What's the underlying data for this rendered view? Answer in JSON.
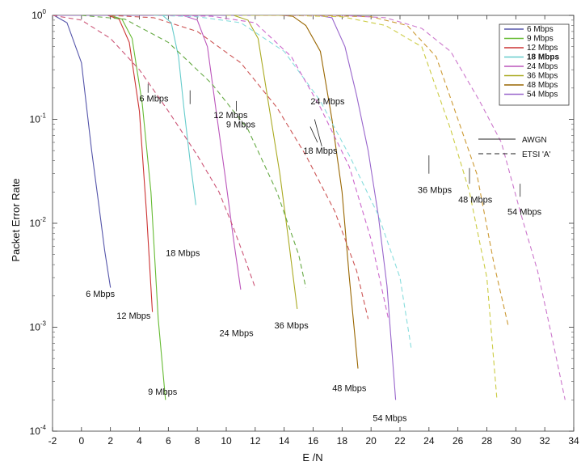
{
  "chart_data": {
    "type": "line",
    "xlabel": "E /N",
    "ylabel": "Packet Error Rate",
    "xlim": [
      -2,
      34
    ],
    "ylim": [
      0.0001,
      1
    ],
    "yscale": "log",
    "x_ticks": [
      -2,
      0,
      2,
      4,
      6,
      8,
      10,
      12,
      14,
      16,
      18,
      20,
      22,
      24,
      26,
      28,
      30,
      32,
      34
    ],
    "y_ticks": [
      {
        "value": 1,
        "base": "10",
        "exp": "0"
      },
      {
        "value": 0.1,
        "base": "10",
        "exp": "-1"
      },
      {
        "value": 0.01,
        "base": "10",
        "exp": "-2"
      },
      {
        "value": 0.001,
        "base": "10",
        "exp": "-3"
      },
      {
        "value": 0.0001,
        "base": "10",
        "exp": "-4"
      }
    ],
    "grid": false,
    "legend_position": "top-right",
    "legend": [
      {
        "name": "6 Mbps",
        "color": "#5555aa"
      },
      {
        "name": "9 Mbps",
        "color": "#66bb33"
      },
      {
        "name": "12 Mbps",
        "color": "#cc3333"
      },
      {
        "name": "18 Mbps",
        "color": "#66cccc",
        "bold": true
      },
      {
        "name": "24 Mbps",
        "color": "#bb55bb"
      },
      {
        "name": "36 Mbps",
        "color": "#aaaa22"
      },
      {
        "name": "48 Mbps",
        "color": "#996600"
      },
      {
        "name": "54 Mbps",
        "color": "#9966cc"
      }
    ],
    "line_styles": [
      {
        "name": "AWGN",
        "dash": "solid"
      },
      {
        "name": "ETSI 'A'",
        "dash": "dashed"
      }
    ],
    "series": [
      {
        "rate": "6 Mbps",
        "channel": "AWGN",
        "color": "#5555aa",
        "dashed": false,
        "x": [
          -1.9,
          -1.0,
          0.0,
          0.7,
          1.2,
          1.6,
          2.0
        ],
        "y": [
          1.0,
          0.85,
          0.35,
          0.05,
          0.015,
          0.0055,
          0.0024
        ]
      },
      {
        "rate": "9 Mbps",
        "channel": "AWGN",
        "color": "#66bb33",
        "dashed": false,
        "x": [
          -2.0,
          2.0,
          2.8,
          3.5,
          4.2,
          4.8,
          5.3,
          5.8
        ],
        "y": [
          1.0,
          1.0,
          0.92,
          0.6,
          0.14,
          0.02,
          0.0012,
          0.0002
        ]
      },
      {
        "rate": "12 Mbps",
        "channel": "AWGN",
        "color": "#cc3333",
        "dashed": false,
        "x": [
          -2.0,
          1.8,
          2.6,
          3.3,
          4.0,
          4.5,
          4.9
        ],
        "y": [
          1.0,
          1.0,
          0.92,
          0.55,
          0.12,
          0.012,
          0.0014
        ]
      },
      {
        "rate": "18 Mbps",
        "channel": "AWGN",
        "color": "#66cccc",
        "dashed": false,
        "x": [
          -2.0,
          5.6,
          6.2,
          6.7,
          7.1,
          7.5,
          7.9
        ],
        "y": [
          1.0,
          1.0,
          0.85,
          0.4,
          0.12,
          0.04,
          0.015
        ]
      },
      {
        "rate": "24 Mbps",
        "channel": "AWGN",
        "color": "#bb55bb",
        "dashed": false,
        "x": [
          -2.0,
          7.0,
          8.0,
          8.7,
          9.3,
          9.9,
          10.5,
          11.0
        ],
        "y": [
          1.0,
          1.0,
          0.9,
          0.5,
          0.12,
          0.03,
          0.007,
          0.0023
        ]
      },
      {
        "rate": "36 Mbps",
        "channel": "AWGN",
        "color": "#aaaa22",
        "dashed": false,
        "x": [
          -2.0,
          10.5,
          11.5,
          12.2,
          13.0,
          13.7,
          14.3,
          14.9
        ],
        "y": [
          1.0,
          1.0,
          0.9,
          0.6,
          0.12,
          0.03,
          0.007,
          0.0015
        ]
      },
      {
        "rate": "48 Mbps",
        "channel": "AWGN",
        "color": "#996600",
        "dashed": false,
        "x": [
          -2.0,
          13.8,
          14.6,
          15.5,
          16.5,
          17.3,
          18.0,
          18.5,
          19.1
        ],
        "y": [
          1.0,
          1.0,
          0.98,
          0.8,
          0.45,
          0.1,
          0.02,
          0.003,
          0.0004
        ]
      },
      {
        "rate": "54 Mbps",
        "channel": "AWGN",
        "color": "#9966cc",
        "dashed": false,
        "x": [
          -2.0,
          16.3,
          17.3,
          18.2,
          19.0,
          19.8,
          20.5,
          21.1,
          21.7
        ],
        "y": [
          1.0,
          1.0,
          0.95,
          0.5,
          0.17,
          0.05,
          0.012,
          0.0025,
          0.0002
        ]
      },
      {
        "rate": "6 Mbps",
        "channel": "ETSI 'A'",
        "color": "#cc5577",
        "dashed": true,
        "x": [
          -2.0,
          0.0,
          2.0,
          4.0,
          6.0,
          8.0,
          9.5,
          10.5,
          11.3,
          12.0
        ],
        "y": [
          1.0,
          0.9,
          0.6,
          0.3,
          0.12,
          0.045,
          0.02,
          0.009,
          0.0045,
          0.0024
        ]
      },
      {
        "rate": "9 Mbps",
        "channel": "ETSI 'A'",
        "color": "#66aa44",
        "dashed": true,
        "x": [
          0.0,
          3.0,
          6.0,
          9.0,
          11.5,
          13.5,
          15.0,
          15.5
        ],
        "y": [
          1.0,
          0.92,
          0.55,
          0.22,
          0.08,
          0.02,
          0.005,
          0.0024
        ]
      },
      {
        "rate": "12 Mbps",
        "channel": "ETSI 'A'",
        "color": "#cc5555",
        "dashed": true,
        "x": [
          2.0,
          5.0,
          8.0,
          11.0,
          13.5,
          15.5,
          17.5,
          19.0,
          19.8
        ],
        "y": [
          1.0,
          0.95,
          0.7,
          0.35,
          0.13,
          0.045,
          0.013,
          0.0035,
          0.0012
        ]
      },
      {
        "rate": "18 Mbps",
        "channel": "ETSI 'A'",
        "color": "#88dddd",
        "dashed": true,
        "x": [
          5.0,
          8.0,
          11.0,
          14.0,
          16.5,
          18.5,
          20.5,
          22.0,
          22.8
        ],
        "y": [
          1.0,
          0.97,
          0.85,
          0.45,
          0.15,
          0.045,
          0.012,
          0.003,
          0.0006
        ]
      },
      {
        "rate": "24 Mbps",
        "channel": "ETSI 'A'",
        "color": "#cc66cc",
        "dashed": true,
        "x": [
          6.0,
          9.0,
          12.0,
          14.5,
          16.5,
          18.5,
          20.0,
          21.2
        ],
        "y": [
          1.0,
          0.98,
          0.85,
          0.4,
          0.13,
          0.035,
          0.007,
          0.0012
        ]
      },
      {
        "rate": "36 Mbps",
        "channel": "ETSI 'A'",
        "color": "#cccc44",
        "dashed": true,
        "x": [
          10.0,
          14.0,
          18.0,
          21.0,
          23.5,
          25.5,
          26.8,
          28.0,
          28.7
        ],
        "y": [
          1.0,
          1.0,
          0.97,
          0.8,
          0.5,
          0.08,
          0.02,
          0.003,
          0.0002
        ]
      },
      {
        "rate": "48 Mbps",
        "channel": "ETSI 'A'",
        "color": "#cc9933",
        "dashed": true,
        "x": [
          12.0,
          16.0,
          20.0,
          22.5,
          24.5,
          26.0,
          27.3,
          28.5,
          29.5
        ],
        "y": [
          1.0,
          1.0,
          0.97,
          0.8,
          0.4,
          0.1,
          0.03,
          0.004,
          0.001
        ]
      },
      {
        "rate": "54 Mbps",
        "channel": "ETSI 'A'",
        "color": "#cc77cc",
        "dashed": true,
        "x": [
          14.0,
          18.0,
          21.0,
          23.5,
          25.5,
          27.5,
          29.0,
          30.3,
          31.5,
          32.5,
          33.4
        ],
        "y": [
          1.0,
          1.0,
          0.95,
          0.75,
          0.45,
          0.15,
          0.06,
          0.013,
          0.0035,
          0.0008,
          0.0002
        ]
      }
    ],
    "annotations": [
      {
        "text": "6 Mbps",
        "x": 5.0,
        "y": 0.16,
        "pointer": [
          4.6,
          0.22,
          4.6,
          0.18
        ]
      },
      {
        "text": "12 Mbps",
        "x": 10.3,
        "y": 0.11,
        "pointer": [
          7.5,
          0.19,
          7.5,
          0.14
        ]
      },
      {
        "text": "9 Mbps",
        "x": 11.0,
        "y": 0.09,
        "pointer": [
          10.7,
          0.15,
          10.7,
          0.12
        ]
      },
      {
        "text": "24 Mbps",
        "x": 17.0,
        "y": 0.15,
        "pointer": [
          16.1,
          0.1,
          16.6,
          0.055
        ]
      },
      {
        "text": "18 Mbps",
        "x": 16.5,
        "y": 0.05,
        "pointer": [
          15.8,
          0.085,
          16.3,
          0.06
        ]
      },
      {
        "text": "36 Mbps",
        "x": 24.4,
        "y": 0.021,
        "pointer": [
          24.0,
          0.045,
          24.0,
          0.03
        ]
      },
      {
        "text": "48 Mbps",
        "x": 27.2,
        "y": 0.017,
        "pointer": [
          26.8,
          0.034,
          26.8,
          0.024
        ]
      },
      {
        "text": "54 Mbps",
        "x": 30.6,
        "y": 0.013,
        "pointer": [
          30.3,
          0.024,
          30.3,
          0.018
        ]
      },
      {
        "text": "18 Mbps",
        "x": 7.0,
        "y": 0.0052
      },
      {
        "text": "6 Mbps",
        "x": 1.3,
        "y": 0.0021
      },
      {
        "text": "12 Mbps",
        "x": 3.6,
        "y": 0.0013
      },
      {
        "text": "24 Mbps",
        "x": 10.7,
        "y": 0.00088
      },
      {
        "text": "36 Mbps",
        "x": 14.5,
        "y": 0.00105
      },
      {
        "text": "48 Mbps",
        "x": 18.5,
        "y": 0.00026
      },
      {
        "text": "9 Mbps",
        "x": 5.6,
        "y": 0.00024
      },
      {
        "text": "54 Mbps",
        "x": 21.3,
        "y": 0.000135
      }
    ]
  }
}
